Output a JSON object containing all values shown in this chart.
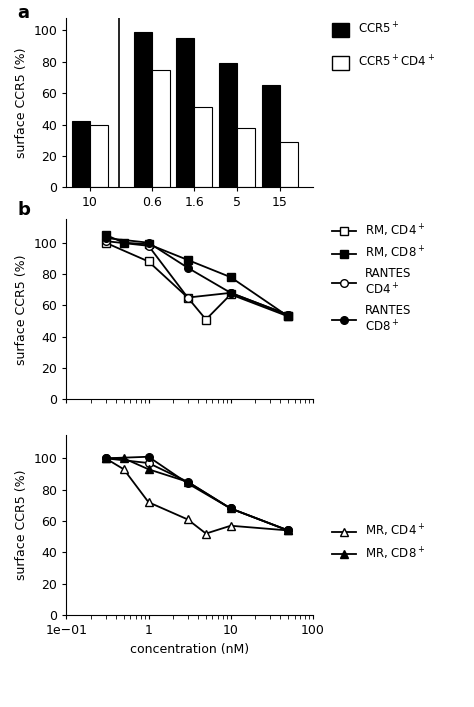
{
  "panel_a": {
    "groups": [
      {
        "label": "10",
        "ccr5_plus": 42,
        "ccr5_cd4": 40
      },
      {
        "label": "0.6",
        "ccr5_plus": 99,
        "ccr5_cd4": 75
      },
      {
        "label": "1.6",
        "ccr5_plus": 95,
        "ccr5_cd4": 51
      },
      {
        "label": "5",
        "ccr5_plus": 79,
        "ccr5_cd4": 38
      },
      {
        "label": "15",
        "ccr5_plus": 65,
        "ccr5_cd4": 29
      }
    ],
    "ylabel": "surface CCR5 (%)",
    "ylim": [
      0,
      108
    ],
    "yticks": [
      0,
      20,
      40,
      60,
      80,
      100
    ],
    "bar_width": 0.38
  },
  "rm_cd4_x": [
    0.3,
    1.0,
    3.0,
    5.0,
    10.0,
    50.0
  ],
  "rm_cd4_y": [
    100,
    88,
    65,
    51,
    67,
    53
  ],
  "rm_cd8_x": [
    0.3,
    0.5,
    1.0,
    3.0,
    10.0,
    50.0
  ],
  "rm_cd8_y": [
    105,
    100,
    99,
    89,
    78,
    53
  ],
  "rantes_cd4_top_x": [
    0.3,
    1.0,
    3.0,
    10.0,
    50.0
  ],
  "rantes_cd4_top_y": [
    101,
    98,
    65,
    68,
    54
  ],
  "rantes_cd8_top_x": [
    0.3,
    1.0,
    3.0,
    10.0,
    50.0
  ],
  "rantes_cd8_top_y": [
    103,
    100,
    84,
    68,
    54
  ],
  "mr_cd4_x": [
    0.3,
    0.5,
    1.0,
    3.0,
    5.0,
    10.0,
    50.0
  ],
  "mr_cd4_y": [
    100,
    93,
    72,
    61,
    52,
    57,
    54
  ],
  "mr_cd8_x": [
    0.3,
    0.5,
    1.0,
    3.0,
    10.0,
    50.0
  ],
  "mr_cd8_y": [
    100,
    100,
    93,
    85,
    68,
    54
  ],
  "rantes_cd4_bot_x": [
    0.3,
    1.0,
    3.0,
    10.0,
    50.0
  ],
  "rantes_cd4_bot_y": [
    100,
    97,
    85,
    68,
    54
  ],
  "rantes_cd8_bot_x": [
    0.3,
    1.0,
    3.0,
    10.0,
    50.0
  ],
  "rantes_cd8_bot_y": [
    100,
    101,
    84,
    68,
    54
  ]
}
